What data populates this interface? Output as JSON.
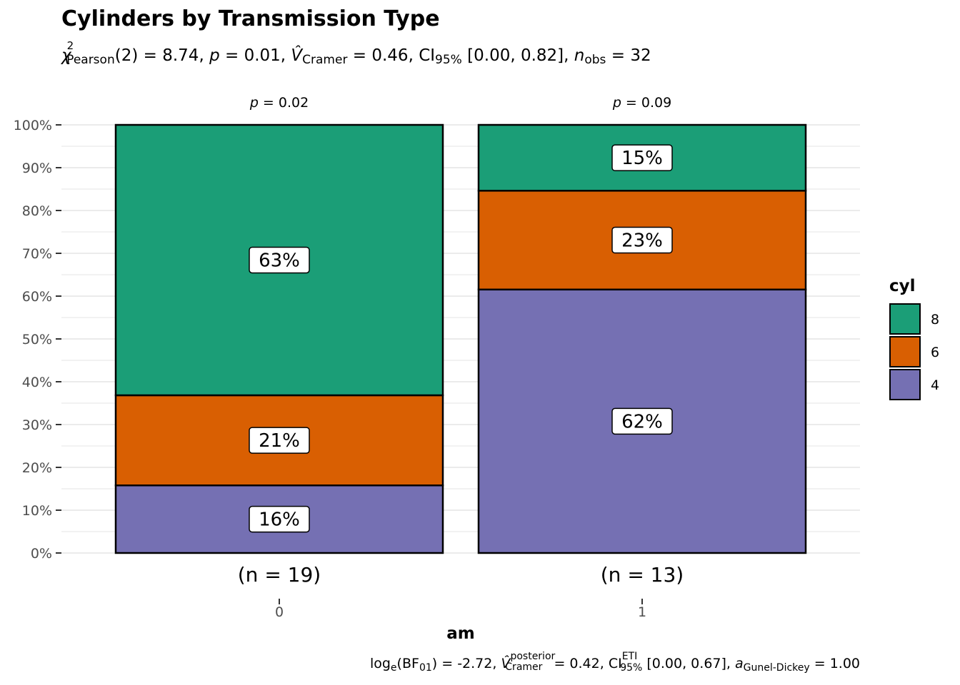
{
  "colors": {
    "cyl_8": "#1B9E77",
    "cyl_6": "#D95F02",
    "cyl_4": "#7570B3",
    "grid": "#EBEBEB"
  },
  "chart_data": {
    "type": "bar",
    "stacked": true,
    "title": "Cylinders by Transmission Type",
    "subtitle": {
      "chi_sub": "Pearson",
      "chi_df": "(2)",
      "chi_value": "8.74",
      "p_value": "0.01",
      "v_sub": "Cramer",
      "v_value": "0.46",
      "ci_label": "CI",
      "ci_sub": "95%",
      "ci_value": "[0.00, 0.82]",
      "n_sub": "obs",
      "n_value": "32"
    },
    "caption": {
      "log_label": "log",
      "log_sub": "e",
      "bf_label": "BF",
      "bf_sub": "01",
      "bf_value": "-2.72",
      "v_sup": "posterior",
      "v_sub": "Cramer",
      "v_value": "0.42",
      "ci_label": "CI",
      "ci_sup": "ETI",
      "ci_sub": "95%",
      "ci_value": "[0.00, 0.67]",
      "a_sub": "Gunel-Dickey",
      "a_value": "1.00"
    },
    "xlabel": "am",
    "ylabel": "",
    "ylim": [
      0,
      100
    ],
    "yticks": [
      "0%",
      "10%",
      "20%",
      "30%",
      "40%",
      "50%",
      "60%",
      "70%",
      "80%",
      "90%",
      "100%"
    ],
    "legend": {
      "title": "cyl",
      "position": "right",
      "items": [
        "8",
        "6",
        "4"
      ]
    },
    "categories": [
      {
        "tick": "0",
        "n_label": "(n = 19)",
        "p_label": "0.02"
      },
      {
        "tick": "1",
        "n_label": "(n = 13)",
        "p_label": "0.09"
      }
    ],
    "series": [
      {
        "name": "4",
        "values": [
          15.79,
          61.54
        ],
        "labels": [
          "16%",
          "62%"
        ]
      },
      {
        "name": "6",
        "values": [
          21.05,
          23.08
        ],
        "labels": [
          "21%",
          "23%"
        ]
      },
      {
        "name": "8",
        "values": [
          63.16,
          15.38
        ],
        "labels": [
          "63%",
          "15%"
        ]
      }
    ]
  }
}
